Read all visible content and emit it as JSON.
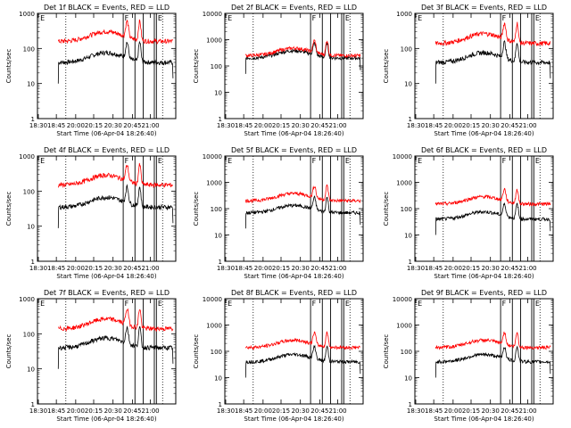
{
  "chart_data": [
    {
      "type": "line",
      "title": "Det 1f BLACK = Events, RED = LLD",
      "xlabel": "Start Time (06-Apr-04 18:26:40)",
      "ylabel": "Counts/sec",
      "log_y": true,
      "ylim": [
        1,
        1000
      ],
      "y_ticks": [
        "1",
        "10",
        "100",
        "1000"
      ],
      "x_ticks": [
        "18:30",
        "18:45",
        "20:00",
        "20:15",
        "20:30",
        "20:45",
        "21:00"
      ],
      "grid": false,
      "series": [
        {
          "color": "#000000",
          "base": 40
        },
        {
          "color": "#ff0000",
          "base": 160
        }
      ]
    },
    {
      "type": "line",
      "title": "Det 2f BLACK = Events, RED = LLD",
      "xlabel": "Start Time (06-Apr-04 18:26:40)",
      "ylabel": "Counts/sec",
      "log_y": true,
      "ylim": [
        1,
        10000
      ],
      "y_ticks": [
        "1",
        "10",
        "100",
        "1000",
        "10000"
      ],
      "x_ticks": [
        "18:30",
        "18:45",
        "20:00",
        "20:15",
        "20:30",
        "20:45",
        "21:00"
      ],
      "grid": false,
      "series": [
        {
          "color": "#000000",
          "base": 200
        },
        {
          "color": "#ff0000",
          "base": 250
        }
      ]
    },
    {
      "type": "line",
      "title": "Det 3f BLACK = Events, RED = LLD",
      "xlabel": "Start Time (06-Apr-04 18:26:40)",
      "ylabel": "Counts/sec",
      "log_y": true,
      "ylim": [
        1,
        1000
      ],
      "y_ticks": [
        "1",
        "10",
        "100",
        "1000"
      ],
      "x_ticks": [
        "18:30",
        "18:45",
        "20:00",
        "20:15",
        "20:30",
        "20:45",
        "21:00"
      ],
      "grid": false,
      "series": [
        {
          "color": "#000000",
          "base": 40
        },
        {
          "color": "#ff0000",
          "base": 140
        }
      ]
    },
    {
      "type": "line",
      "title": "Det 4f BLACK = Events, RED = LLD",
      "xlabel": "Start Time (06-Apr-04 18:26:40)",
      "ylabel": "Counts/sec",
      "log_y": true,
      "ylim": [
        1,
        1000
      ],
      "y_ticks": [
        "1",
        "10",
        "100",
        "1000"
      ],
      "x_ticks": [
        "18:30",
        "18:45",
        "20:00",
        "20:15",
        "20:30",
        "20:45",
        "21:00"
      ],
      "grid": false,
      "series": [
        {
          "color": "#000000",
          "base": 35
        },
        {
          "color": "#ff0000",
          "base": 150
        }
      ]
    },
    {
      "type": "line",
      "title": "Det 5f BLACK = Events, RED = LLD",
      "xlabel": "Start Time (06-Apr-04 18:26:40)",
      "ylabel": "Counts/sec",
      "log_y": true,
      "ylim": [
        1,
        10000
      ],
      "y_ticks": [
        "1",
        "10",
        "100",
        "1000",
        "10000"
      ],
      "x_ticks": [
        "18:30",
        "18:45",
        "20:00",
        "20:15",
        "20:30",
        "20:45",
        "21:00"
      ],
      "grid": false,
      "series": [
        {
          "color": "#000000",
          "base": 70
        },
        {
          "color": "#ff0000",
          "base": 200
        }
      ]
    },
    {
      "type": "line",
      "title": "Det 6f BLACK = Events, RED = LLD",
      "xlabel": "Start Time (06-Apr-04 18:26:40)",
      "ylabel": "Counts/sec",
      "log_y": true,
      "ylim": [
        1,
        10000
      ],
      "y_ticks": [
        "1",
        "10",
        "100",
        "1000",
        "10000"
      ],
      "x_ticks": [
        "18:30",
        "18:45",
        "20:00",
        "20:15",
        "20:30",
        "20:45",
        "21:00"
      ],
      "grid": false,
      "series": [
        {
          "color": "#000000",
          "base": 40
        },
        {
          "color": "#ff0000",
          "base": 150
        }
      ]
    },
    {
      "type": "line",
      "title": "Det 7f BLACK = Events, RED = LLD",
      "xlabel": "Start Time (06-Apr-04 18:26:40)",
      "ylabel": "Counts/sec",
      "log_y": true,
      "ylim": [
        1,
        1000
      ],
      "y_ticks": [
        "1",
        "10",
        "100",
        "1000"
      ],
      "x_ticks": [
        "18:30",
        "18:45",
        "20:00",
        "20:15",
        "20:30",
        "20:45",
        "21:00"
      ],
      "grid": false,
      "series": [
        {
          "color": "#000000",
          "base": 40
        },
        {
          "color": "#ff0000",
          "base": 140
        }
      ]
    },
    {
      "type": "line",
      "title": "Det 8f BLACK = Events, RED = LLD",
      "xlabel": "Start Time (06-Apr-04 18:26:40)",
      "ylabel": "Counts/sec",
      "log_y": true,
      "ylim": [
        1,
        10000
      ],
      "y_ticks": [
        "1",
        "10",
        "100",
        "1000",
        "10000"
      ],
      "x_ticks": [
        "18:30",
        "18:45",
        "20:00",
        "20:15",
        "20:30",
        "20:45",
        "21:00"
      ],
      "grid": false,
      "series": [
        {
          "color": "#000000",
          "base": 40
        },
        {
          "color": "#ff0000",
          "base": 140
        }
      ]
    },
    {
      "type": "line",
      "title": "Det 9f BLACK = Events, RED = LLD",
      "xlabel": "Start Time (06-Apr-04 18:26:40)",
      "ylabel": "Counts/sec",
      "log_y": true,
      "ylim": [
        1,
        10000
      ],
      "y_ticks": [
        "1",
        "10",
        "100",
        "1000",
        "10000"
      ],
      "x_ticks": [
        "18:30",
        "18:45",
        "20:00",
        "20:15",
        "20:30",
        "20:45",
        "21:00"
      ],
      "grid": false,
      "series": [
        {
          "color": "#000000",
          "base": 40
        },
        {
          "color": "#ff0000",
          "base": 140
        }
      ]
    }
  ]
}
